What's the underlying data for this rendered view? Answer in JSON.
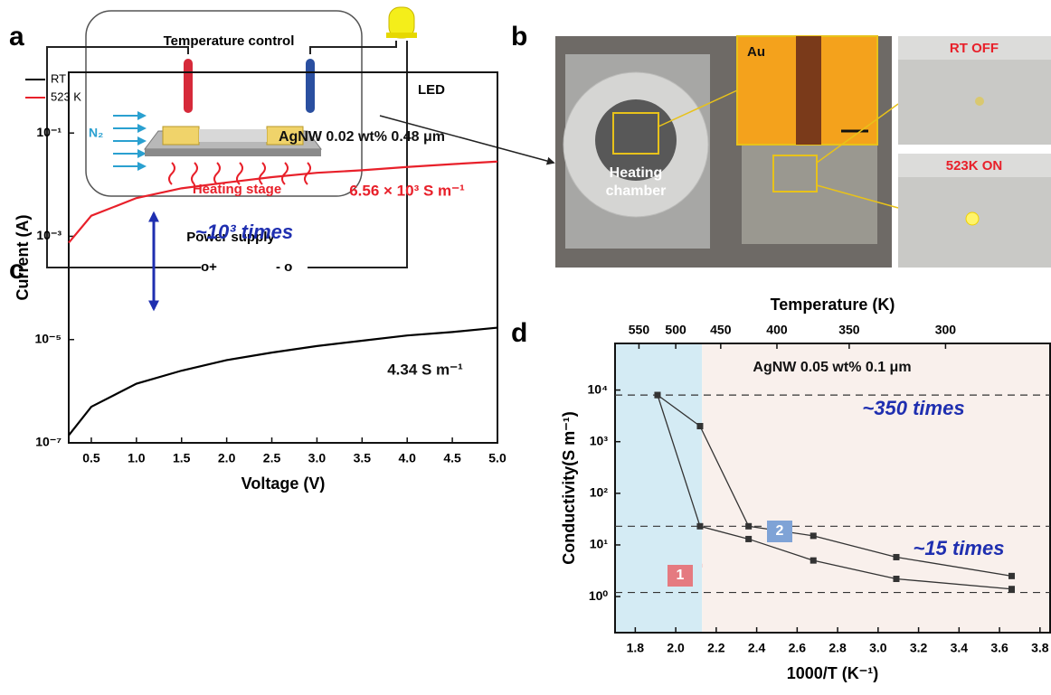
{
  "panels": {
    "a": {
      "label": "a",
      "title": "Temperature control",
      "gas": "N₂",
      "stage": "Heating stage",
      "led": "LED",
      "supply": "Power supply",
      "plus": "o+",
      "minus": "- o"
    },
    "b": {
      "label": "b",
      "au": "Au",
      "chamber": [
        "Heating",
        "chamber"
      ],
      "off": "RT OFF",
      "on": "523K ON"
    }
  },
  "chart_data": [
    {
      "type": "line",
      "panel": "c",
      "xlabel": "Voltage (V)",
      "ylabel": "Current (A)",
      "log_y": true,
      "markers": false,
      "x": [
        0.25,
        0.5,
        1.0,
        1.5,
        2.0,
        2.5,
        3.0,
        3.5,
        4.0,
        4.5,
        5.0
      ],
      "series": [
        {
          "name": "RT",
          "color": "#000000",
          "values": [
            1.4e-07,
            5e-07,
            1.4e-06,
            2.5e-06,
            4e-06,
            5.6e-06,
            7.5e-06,
            9.5e-06,
            1.2e-05,
            1.4e-05,
            1.7e-05
          ]
        },
        {
          "name": "523 K",
          "color": "#e8202a",
          "values": [
            0.00075,
            0.0025,
            0.0055,
            0.0085,
            0.011,
            0.014,
            0.017,
            0.019,
            0.022,
            0.025,
            0.028
          ]
        }
      ],
      "xlim": [
        0.25,
        5.0
      ],
      "ylim": [
        1e-07,
        1.5
      ],
      "xticks": [
        0.5,
        {
          "value": 1,
          "label": "1.0"
        },
        1.5,
        {
          "value": 2,
          "label": "2.0"
        },
        2.5,
        {
          "value": 3,
          "label": "3.0"
        },
        3.5,
        {
          "value": 4,
          "label": "4.0"
        },
        4.5,
        {
          "value": 5,
          "label": "5.0"
        }
      ],
      "yticks": [
        {
          "value": 1e-07,
          "label": "10⁻⁷"
        },
        {
          "value": 1e-05,
          "label": "10⁻⁵"
        },
        {
          "value": 0.001,
          "label": "10⁻³"
        },
        {
          "value": 0.1,
          "label": "10⁻¹"
        }
      ],
      "annotations": [
        "AgNW 0.02 wt% 0.48 μm",
        "6.56 × 10³ S m⁻¹",
        "~10³ times",
        "4.34 S m⁻¹"
      ]
    },
    {
      "type": "line",
      "panel": "d",
      "xlabel": "1000/T (K⁻¹)",
      "ylabel": "Conductivity(S m⁻¹)",
      "x2label": "Temperature (K)",
      "log_y": true,
      "markers": true,
      "x": [
        1.91,
        2.12,
        2.36,
        2.68,
        3.09,
        3.66
      ],
      "series": [
        {
          "color": "#333333",
          "values": [
            8000,
            2000,
            23,
            15,
            5.8,
            2.5
          ]
        },
        {
          "color": "#333333",
          "values": [
            8000,
            23,
            13,
            5,
            2.2,
            1.4
          ]
        }
      ],
      "xlim": [
        1.7,
        3.85
      ],
      "ylim": [
        0.2,
        80000
      ],
      "xticks": [
        1.8,
        {
          "value": 2,
          "label": "2.0"
        },
        2.2,
        2.4,
        2.6,
        2.8,
        {
          "value": 3,
          "label": "3.0"
        },
        3.2,
        3.4,
        3.6,
        3.8
      ],
      "x2ticks": [
        550,
        500,
        450,
        400,
        350,
        300
      ],
      "yticks": [
        {
          "value": 1,
          "label": "10⁰"
        },
        {
          "value": 10,
          "label": "10¹"
        },
        {
          "value": 100,
          "label": "10²"
        },
        {
          "value": 1000,
          "label": "10³"
        },
        {
          "value": 10000,
          "label": "10⁴"
        }
      ],
      "hlines": [
        8000,
        23,
        1.2
      ],
      "highlight_x": 2.13,
      "annotations": [
        "AgNW 0.05 wt% 0.1 μm",
        "~350 times",
        "~15 times",
        "1",
        "2"
      ]
    }
  ]
}
